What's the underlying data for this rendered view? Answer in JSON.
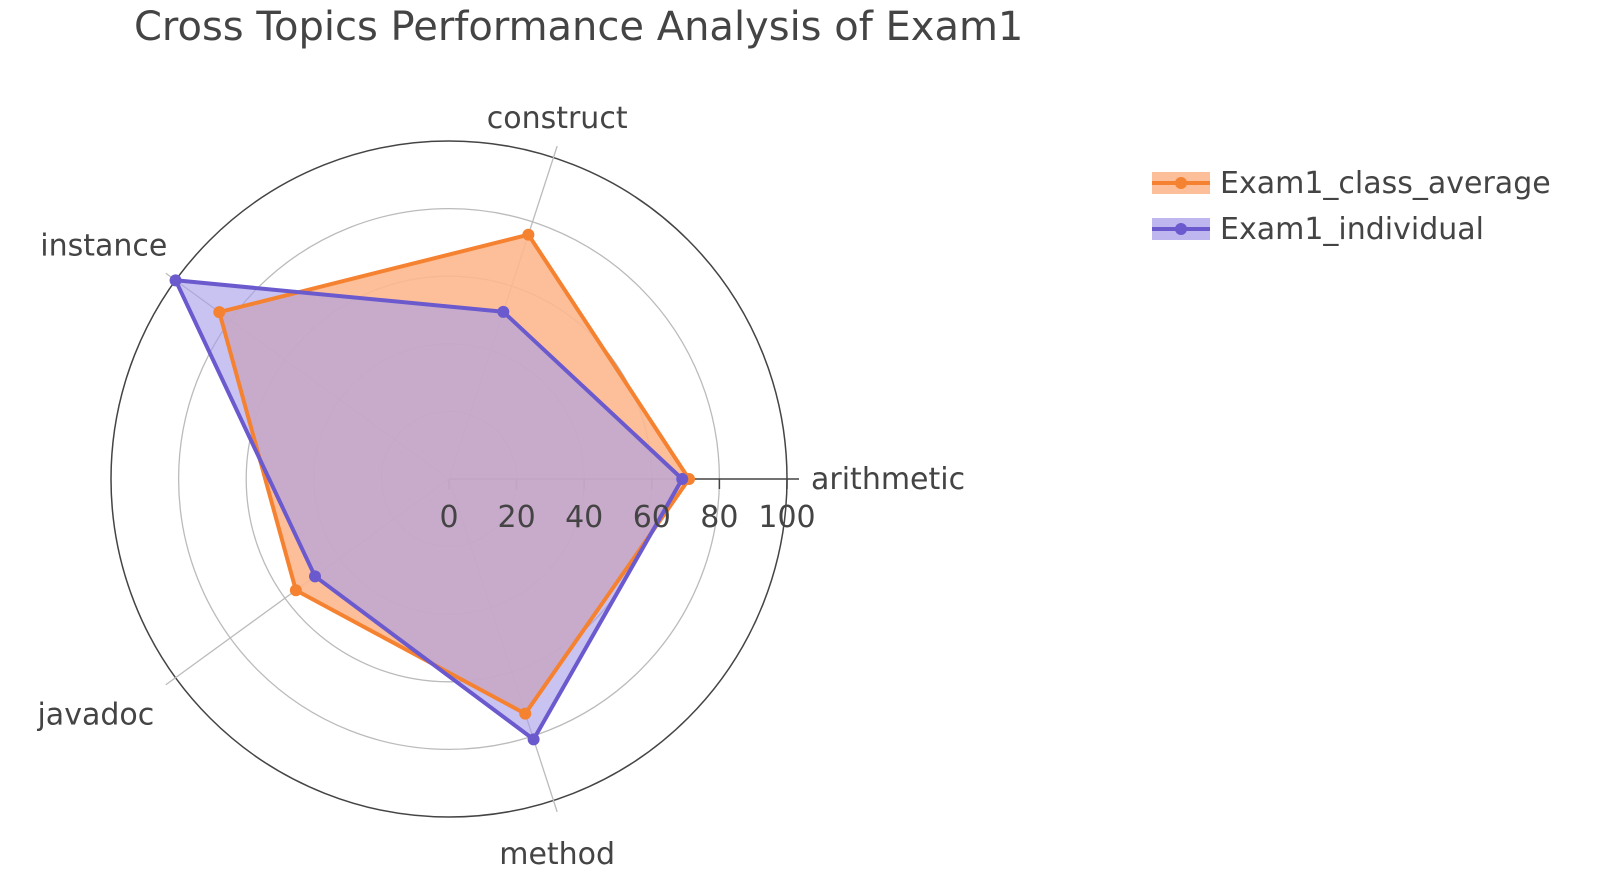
{
  "chart_data": {
    "type": "radar",
    "title": "Cross Topics Performance Analysis of Exam1",
    "categories": [
      "arithmetic",
      "construct",
      "instance",
      "javadoc",
      "method"
    ],
    "radial_range": [
      0,
      100
    ],
    "radial_ticks": [
      "0",
      "20",
      "40",
      "60",
      "80",
      "100"
    ],
    "grid": true,
    "legend_position": "top-right",
    "series": [
      {
        "name": "Exam1_class_average",
        "color": "#f58231",
        "fill": "#fdb88f",
        "values": [
          71,
          76,
          84,
          56,
          73
        ]
      },
      {
        "name": "Exam1_individual",
        "color": "#6a5acd",
        "fill": "#a89ee8",
        "values": [
          69,
          52,
          100,
          49,
          81
        ]
      }
    ]
  }
}
